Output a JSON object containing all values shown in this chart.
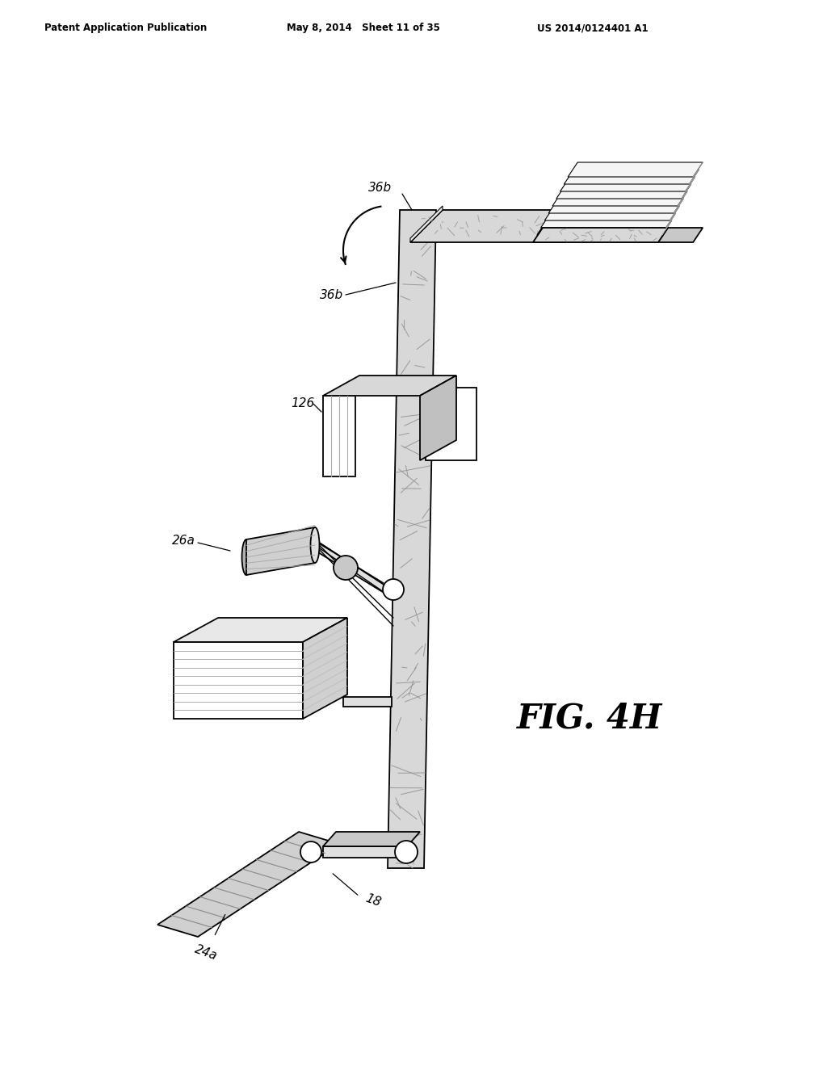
{
  "header_left": "Patent Application Publication",
  "header_mid": "May 8, 2014   Sheet 11 of 35",
  "header_right": "US 2014/0124401 A1",
  "fig_label": "FIG. 4H",
  "bg_color": "#ffffff",
  "line_color": "#000000"
}
